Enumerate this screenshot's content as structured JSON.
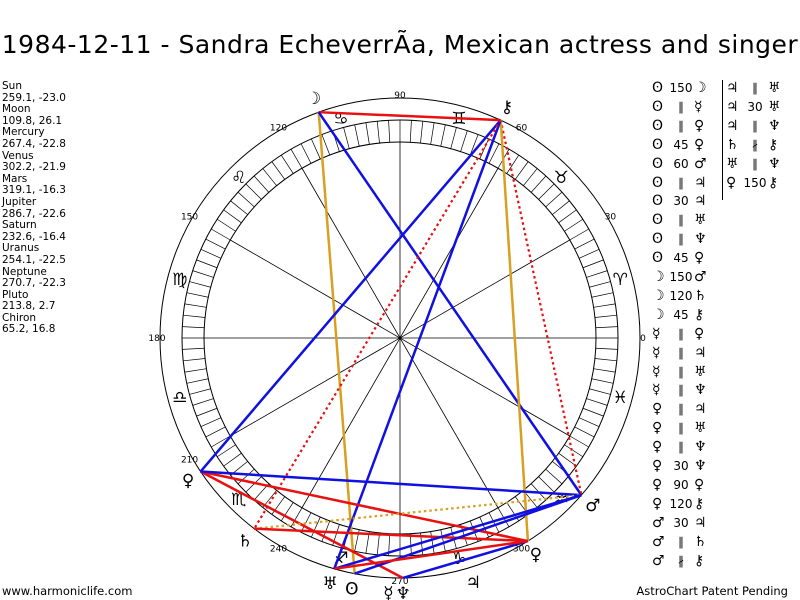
{
  "title": "1984-12-11 - Sandra EcheverrÃa, Mexican actress and singer",
  "planets": [
    {
      "name": "Sun",
      "pos": "259.1, -23.0",
      "lon": 259.1,
      "glyph": "ʘ"
    },
    {
      "name": "Moon",
      "pos": "109.8, 26.1",
      "lon": 109.8,
      "glyph": "☽"
    },
    {
      "name": "Mercury",
      "pos": "267.4, -22.8",
      "lon": 267.4,
      "glyph": "☿"
    },
    {
      "name": "Venus",
      "pos": "302.2, -21.9",
      "lon": 302.2,
      "glyph": "♀"
    },
    {
      "name": "Mars",
      "pos": "319.1, -16.3",
      "lon": 319.1,
      "glyph": "♂"
    },
    {
      "name": "Jupiter",
      "pos": "286.7, -22.6",
      "lon": 286.7,
      "glyph": "♃"
    },
    {
      "name": "Saturn",
      "pos": "232.6, -16.4",
      "lon": 232.6,
      "glyph": "♄"
    },
    {
      "name": "Uranus",
      "pos": "254.1, -22.5",
      "lon": 254.1,
      "glyph": "♅"
    },
    {
      "name": "Neptune",
      "pos": "270.7, -22.3",
      "lon": 270.7,
      "glyph": "♆"
    },
    {
      "name": "Pluto",
      "pos": "213.8, 2.7",
      "lon": 213.8,
      "glyph": "♀"
    },
    {
      "name": "Chiron",
      "pos": "65.2, 16.8",
      "lon": 65.2,
      "glyph": "⚷"
    }
  ],
  "degree_labels": [
    {
      "deg": 0,
      "text": "0"
    },
    {
      "deg": 30,
      "text": "30"
    },
    {
      "deg": 60,
      "text": "60"
    },
    {
      "deg": 90,
      "text": "90"
    },
    {
      "deg": 120,
      "text": "120"
    },
    {
      "deg": 150,
      "text": "150"
    },
    {
      "deg": 180,
      "text": "180"
    },
    {
      "deg": 210,
      "text": "210"
    },
    {
      "deg": 240,
      "text": "240"
    },
    {
      "deg": 270,
      "text": "270"
    },
    {
      "deg": 300,
      "text": "300"
    }
  ],
  "zodiac": [
    {
      "deg": 15,
      "glyph": "♈"
    },
    {
      "deg": 45,
      "glyph": "♉"
    },
    {
      "deg": 75,
      "glyph": "♊"
    },
    {
      "deg": 105,
      "glyph": "♋"
    },
    {
      "deg": 135,
      "glyph": "♌"
    },
    {
      "deg": 165,
      "glyph": "♍"
    },
    {
      "deg": 195,
      "glyph": "♎"
    },
    {
      "deg": 225,
      "glyph": "♏"
    },
    {
      "deg": 255,
      "glyph": "♐"
    },
    {
      "deg": 285,
      "glyph": "♑"
    },
    {
      "deg": 315,
      "glyph": "♒"
    },
    {
      "deg": 345,
      "glyph": "♓"
    }
  ],
  "aspect_lines": [
    {
      "from": "Moon",
      "to": "Chiron",
      "color": "#e81010",
      "style": "solid"
    },
    {
      "from": "Moon",
      "to": "Sun",
      "color": "#d8a020",
      "style": "solid"
    },
    {
      "from": "Moon",
      "to": "Mars",
      "color": "#1010e0",
      "style": "solid"
    },
    {
      "from": "Chiron",
      "to": "Pluto",
      "color": "#1010e0",
      "style": "solid"
    },
    {
      "from": "Chiron",
      "to": "Mars",
      "color": "#e81010",
      "style": "dotted"
    },
    {
      "from": "Chiron",
      "to": "Venus",
      "color": "#d8a020",
      "style": "solid"
    },
    {
      "from": "Chiron",
      "to": "Uranus",
      "color": "#1010e0",
      "style": "solid"
    },
    {
      "from": "Chiron",
      "to": "Saturn",
      "color": "#e81010",
      "style": "dotted"
    },
    {
      "from": "Pluto",
      "to": "Venus",
      "color": "#e81010",
      "style": "solid"
    },
    {
      "from": "Pluto",
      "to": "Neptune",
      "color": "#e81010",
      "style": "solid"
    },
    {
      "from": "Pluto",
      "to": "Mars",
      "color": "#1010e0",
      "style": "solid"
    },
    {
      "from": "Saturn",
      "to": "Mars",
      "color": "#d8a020",
      "style": "dotted"
    },
    {
      "from": "Saturn",
      "to": "Venus",
      "color": "#e81010",
      "style": "solid"
    },
    {
      "from": "Sun",
      "to": "Mars",
      "color": "#1010e0",
      "style": "solid"
    },
    {
      "from": "Uranus",
      "to": "Mars",
      "color": "#1010e0",
      "style": "solid"
    },
    {
      "from": "Neptune",
      "to": "Venus",
      "color": "#1010e0",
      "style": "solid"
    },
    {
      "from": "Uranus",
      "to": "Venus",
      "color": "#e81010",
      "style": "solid"
    }
  ],
  "aspect_grid_col1": [
    [
      "ʘ",
      "150",
      "☽"
    ],
    [
      "ʘ",
      "∥",
      "☿"
    ],
    [
      "ʘ",
      "∥",
      "♀"
    ],
    [
      "ʘ",
      "45",
      "♀"
    ],
    [
      "ʘ",
      "60",
      "♂"
    ],
    [
      "ʘ",
      "∥",
      "♃"
    ],
    [
      "ʘ",
      "30",
      "♃"
    ],
    [
      "ʘ",
      "∥",
      "♅"
    ],
    [
      "ʘ",
      "∥",
      "♆"
    ],
    [
      "ʘ",
      "45",
      "♀"
    ],
    [
      "☽",
      "150",
      "♂"
    ],
    [
      "☽",
      "120",
      "♄"
    ],
    [
      "☽",
      "45",
      "⚷"
    ],
    [
      "☿",
      "∥",
      "♀"
    ],
    [
      "☿",
      "∥",
      "♃"
    ],
    [
      "☿",
      "∥",
      "♅"
    ],
    [
      "☿",
      "∥",
      "♆"
    ],
    [
      "♀",
      "∥",
      "♃"
    ],
    [
      "♀",
      "∥",
      "♅"
    ],
    [
      "♀",
      "∥",
      "♆"
    ],
    [
      "♀",
      "30",
      "♆"
    ],
    [
      "♀",
      "90",
      "♀"
    ],
    [
      "♀",
      "120",
      "⚷"
    ],
    [
      "♂",
      "30",
      "♃"
    ],
    [
      "♂",
      "∥",
      "♄"
    ],
    [
      "♂",
      "∦",
      "⚷"
    ]
  ],
  "aspect_grid_col2": [
    [
      "♃",
      "∥",
      "♅"
    ],
    [
      "♃",
      "30",
      "♅"
    ],
    [
      "♃",
      "∥",
      "♆"
    ],
    [
      "♄",
      "∦",
      "⚷"
    ],
    [
      "♅",
      "∥",
      "♆"
    ],
    [
      "♀",
      "150",
      "⚷"
    ]
  ],
  "footer_left": "www.harmoniclife.com",
  "footer_right": "AstroChart Patent Pending",
  "colors": {
    "red": "#e81010",
    "blue": "#1010e0",
    "gold": "#d8a020"
  }
}
